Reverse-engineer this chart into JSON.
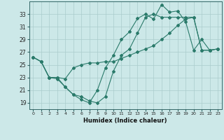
{
  "xlabel": "Humidex (Indice chaleur)",
  "background_color": "#cce8e8",
  "grid_color": "#aacccc",
  "line_color": "#2a7a6a",
  "xlim": [
    -0.5,
    23.5
  ],
  "ylim": [
    18.0,
    35.0
  ],
  "yticks": [
    19,
    21,
    23,
    25,
    27,
    29,
    31,
    33
  ],
  "xticks": [
    0,
    1,
    2,
    3,
    4,
    5,
    6,
    7,
    8,
    9,
    10,
    11,
    12,
    13,
    14,
    15,
    16,
    17,
    18,
    19,
    20,
    21,
    22,
    23
  ],
  "line1_x": [
    0,
    1,
    2,
    3,
    4,
    5,
    6,
    7,
    8,
    9,
    10,
    11,
    12,
    13,
    14,
    15,
    16,
    17,
    18,
    19,
    20,
    21,
    22,
    23
  ],
  "line1_y": [
    26.2,
    25.5,
    23.0,
    22.8,
    21.5,
    20.3,
    19.5,
    19.0,
    21.0,
    24.5,
    26.5,
    29.0,
    30.2,
    32.3,
    33.0,
    32.2,
    34.5,
    33.3,
    33.5,
    31.8,
    27.3,
    29.0,
    27.3,
    27.5
  ],
  "line2_x": [
    0,
    1,
    2,
    3,
    4,
    5,
    6,
    7,
    8,
    9,
    10,
    11,
    12,
    13,
    14,
    15,
    16,
    17,
    18,
    19,
    20,
    21,
    22,
    23
  ],
  "line2_y": [
    26.2,
    25.5,
    23.0,
    23.0,
    22.8,
    24.5,
    25.0,
    25.3,
    25.3,
    25.5,
    25.5,
    26.0,
    26.5,
    27.0,
    27.5,
    28.0,
    29.0,
    30.0,
    31.2,
    32.2,
    32.5,
    27.3,
    27.3,
    27.5
  ],
  "line3_x": [
    0,
    1,
    2,
    3,
    4,
    5,
    6,
    7,
    8,
    9,
    10,
    11,
    12,
    13,
    14,
    15,
    16,
    17,
    18,
    19,
    20,
    21,
    22,
    23
  ],
  "line3_y": [
    26.2,
    25.5,
    23.0,
    23.0,
    21.5,
    20.3,
    20.0,
    19.3,
    19.0,
    20.0,
    24.0,
    26.5,
    27.5,
    30.0,
    32.5,
    33.0,
    32.5,
    32.5,
    32.5,
    32.5,
    32.5,
    27.3,
    27.3,
    27.5
  ]
}
